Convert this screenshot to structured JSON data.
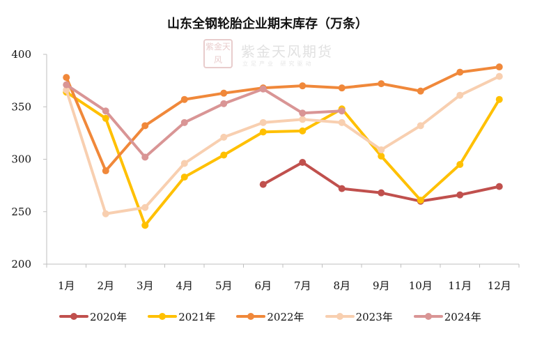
{
  "chart_data": {
    "type": "line",
    "title": "山东全钢轮胎企业期末库存（万条）",
    "categories": [
      "1月",
      "2月",
      "3月",
      "4月",
      "5月",
      "6月",
      "7月",
      "8月",
      "9月",
      "10月",
      "11月",
      "12月"
    ],
    "ylim": [
      200,
      400
    ],
    "yticks": [
      200,
      250,
      300,
      350,
      400
    ],
    "grid": false,
    "legend_position": "bottom",
    "series": [
      {
        "name": "2020年",
        "color": "#c0504d",
        "values": [
          null,
          null,
          null,
          null,
          null,
          276,
          297,
          272,
          268,
          260,
          266,
          274
        ]
      },
      {
        "name": "2021年",
        "color": "#ffc000",
        "values": [
          364,
          339,
          237,
          283,
          304,
          326,
          327,
          348,
          303,
          261,
          295,
          357
        ]
      },
      {
        "name": "2022年",
        "color": "#f0883a",
        "values": [
          378,
          289,
          332,
          357,
          363,
          368,
          370,
          368,
          372,
          365,
          383,
          388
        ]
      },
      {
        "name": "2023年",
        "color": "#f8cfb0",
        "values": [
          366,
          248,
          254,
          296,
          321,
          335,
          338,
          335,
          309,
          332,
          361,
          379
        ]
      },
      {
        "name": "2024年",
        "color": "#d99595",
        "values": [
          371,
          346,
          302,
          335,
          353,
          367,
          344,
          346,
          null,
          null,
          null,
          null
        ]
      }
    ]
  },
  "watermark": {
    "logo_text": "紫金天风",
    "name": "紫金天风期货",
    "slogan": "立足产业 研究驱动"
  }
}
